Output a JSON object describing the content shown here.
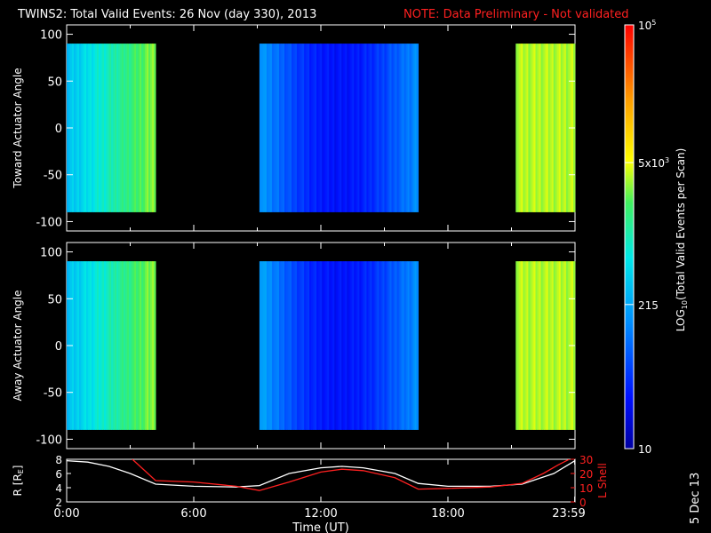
{
  "header": {
    "title": "TWINS2: Total Valid Events: 26 Nov (day 330), 2013",
    "note": "NOTE: Data Preliminary - Not validated"
  },
  "side_stamp": "5 Dec 13",
  "colors": {
    "background": "#000000",
    "text": "#ffffff",
    "note": "#ff2020",
    "r_line": "#ffffff",
    "lshell_line": "#ff2020"
  },
  "chart_data": [
    {
      "type": "heatmap",
      "ylabel": "Toward Actuator Angle",
      "ylim": [
        -110,
        110
      ],
      "yticks": [
        100,
        50,
        0,
        -50,
        -100
      ],
      "ytick_labels": [
        "100",
        "50",
        "0",
        "-50",
        "-100"
      ],
      "xlim": [
        0,
        24
      ],
      "data_angle_range": [
        -90,
        90
      ],
      "segments": [
        {
          "start_h": 0.0,
          "end_h": 4.2,
          "value_start": 0.38,
          "value_end": 0.62
        },
        {
          "start_h": 9.1,
          "end_h": 16.6,
          "value_start": 0.32,
          "value_mid": 0.12,
          "value_end": 0.3
        },
        {
          "start_h": 21.2,
          "end_h": 24.0,
          "value_start": 0.64,
          "value_end": 0.64
        }
      ]
    },
    {
      "type": "heatmap",
      "ylabel": "Away Actuator Angle",
      "ylim": [
        -110,
        110
      ],
      "yticks": [
        100,
        50,
        0,
        -50,
        -100
      ],
      "ytick_labels": [
        "100",
        "50",
        "0",
        "-50",
        "-100"
      ],
      "xlim": [
        0,
        24
      ],
      "data_angle_range": [
        -90,
        90
      ],
      "segments": [
        {
          "start_h": 0.0,
          "end_h": 4.2,
          "value_start": 0.38,
          "value_end": 0.62
        },
        {
          "start_h": 9.1,
          "end_h": 16.6,
          "value_start": 0.34,
          "value_mid": 0.12,
          "value_end": 0.3
        },
        {
          "start_h": 21.2,
          "end_h": 24.0,
          "value_start": 0.64,
          "value_end": 0.64
        }
      ]
    },
    {
      "type": "line",
      "ylabel": "R [R",
      "ylabel_sub": "E",
      "ylabel_tail": "]",
      "ylim": [
        2,
        8
      ],
      "yticks": [
        8,
        6,
        4,
        2
      ],
      "ytick_labels": [
        "8",
        "6",
        "4",
        "2"
      ],
      "y2label": "L Shell",
      "y2lim": [
        0,
        30
      ],
      "y2ticks": [
        30,
        20,
        10,
        0
      ],
      "y2tick_labels": [
        "30",
        "20",
        "10",
        "0"
      ],
      "xlabel": "Time (UT)",
      "xlim": [
        0,
        24
      ],
      "xticks": [
        0,
        6,
        12,
        18,
        23.983
      ],
      "xtick_labels": [
        "0:00",
        "6:00",
        "12:00",
        "18:00",
        "23:59"
      ],
      "series": [
        {
          "name": "R",
          "axis": "left",
          "x": [
            0,
            1,
            2,
            3,
            4.2,
            6,
            8,
            9.1,
            10.5,
            12,
            13,
            14,
            15.5,
            16.6,
            18,
            20,
            21.5,
            23,
            24
          ],
          "y": [
            7.8,
            7.6,
            7.0,
            6.0,
            4.5,
            4.2,
            4.1,
            4.3,
            6.0,
            6.8,
            7.0,
            6.8,
            6.0,
            4.6,
            4.2,
            4.2,
            4.5,
            6.0,
            7.8
          ]
        },
        {
          "name": "L Shell",
          "axis": "right",
          "x": [
            3.1,
            4.2,
            6,
            8,
            9.1,
            10.5,
            12,
            13,
            14,
            15.5,
            16.6,
            18,
            20,
            21.5,
            22.5,
            23.2,
            24
          ],
          "y": [
            30,
            15,
            14,
            11,
            8,
            14,
            21,
            23,
            22,
            17,
            9,
            9.5,
            10.5,
            13,
            20,
            26,
            32
          ]
        }
      ]
    }
  ],
  "colorbar": {
    "label": "LOG",
    "label_sub": "10",
    "label_tail": "(Total Valid Events per Scan)",
    "scale": "log",
    "range": [
      10,
      100000
    ],
    "ticks": [
      {
        "base": "10",
        "exp": "5",
        "pos": 1.0
      },
      {
        "base": "5x10",
        "exp": "3",
        "pos": 0.675
      },
      {
        "base": "215",
        "exp": "",
        "pos": 0.34
      },
      {
        "base": "10",
        "exp": "",
        "pos": 0.0
      }
    ]
  }
}
